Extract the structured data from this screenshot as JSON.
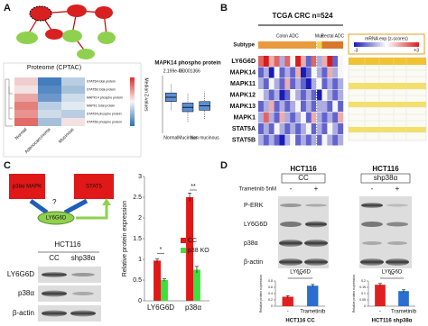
{
  "panel_labels": [
    "A",
    "B",
    "C",
    "D"
  ],
  "panel_a": {
    "heatmap": {
      "title": "Proteome (CPTAC)",
      "colorbar_title": "Median Z-values",
      "columns": [
        "Normal",
        "Adenocarcinoma",
        "Mucinous"
      ],
      "rows": [
        "STAT5A total protein",
        "STAT5B total protein",
        "MAPK14 phospho protein",
        "MAPK1 total protein",
        "STAT5A phospho protein",
        "STAT5B phospho protein"
      ],
      "zlim": [
        -1,
        1
      ],
      "values": [
        [
          0.2,
          -0.9,
          -0.3
        ],
        [
          0.1,
          -0.8,
          -0.4
        ],
        [
          0.4,
          -0.7,
          -0.2
        ],
        [
          0.6,
          -0.3,
          -0.1
        ],
        [
          0.5,
          -0.2,
          -0.3
        ],
        [
          0.7,
          -0.4,
          0.1
        ]
      ]
    }
  },
  "panel_b": {
    "title": "TCGA CRC n=524",
    "subtype_label": "Subtype",
    "subtypes": [
      {
        "label": "Colon ADC",
        "columns": 11,
        "color": "#e89a3c"
      },
      {
        "label": "Muc",
        "columns": 1,
        "color": "#f2d24a"
      },
      {
        "label": "Rectal ADC",
        "columns": 4,
        "color": "#d9772a"
      }
    ],
    "color_key": {
      "title": "mRNA exp (z-scores)",
      "min_label": "-3",
      "max_label": "+3"
    },
    "zlim": [
      -3,
      3
    ],
    "genes": [
      "LY6G6D",
      "MAPK14",
      "MAPK11",
      "MAPK12",
      "MAPK13",
      "MAPK1",
      "STAT5A",
      "STAT5B"
    ],
    "values": [
      [
        2,
        3,
        1,
        2,
        -1,
        2,
        0,
        3,
        1,
        -2,
        2,
        -1,
        1,
        3,
        -2,
        0
      ],
      [
        -2,
        -1,
        -3,
        0,
        -2,
        -1,
        -2,
        1,
        -3,
        -2,
        0,
        -1,
        -2,
        1,
        -1,
        0
      ],
      [
        -1,
        -2,
        0,
        -1,
        -2,
        1,
        -2,
        -1,
        -2,
        -3,
        -1,
        0,
        -2,
        -1,
        -2,
        -1
      ],
      [
        0,
        -1,
        -2,
        -1,
        -3,
        -2,
        0,
        -1,
        -2,
        -1,
        -2,
        -3,
        0,
        -1,
        -2,
        -1
      ],
      [
        -2,
        -1,
        1,
        -2,
        -1,
        -2,
        -1,
        0,
        -2,
        -1,
        -2,
        -1,
        -1,
        -2,
        0,
        -2
      ],
      [
        -1,
        2,
        -1,
        -2,
        1,
        -1,
        -2,
        -1,
        0,
        -2,
        1,
        -1,
        -2,
        -1,
        -2,
        1
      ],
      [
        -2,
        -1,
        -2,
        0,
        -1,
        -2,
        -1,
        -2,
        -1,
        0,
        -2,
        -1,
        -2,
        0,
        -1,
        -2
      ],
      [
        -1,
        -2,
        -1,
        -2,
        -3,
        -1,
        0,
        -2,
        -1,
        -2,
        -1,
        -2,
        0,
        -1,
        -2,
        -1
      ]
    ]
  },
  "panel_c": {
    "diagram": {
      "node_1": "p38α MAPK",
      "node_2": "STAT5",
      "question": "?",
      "target": "LY6G6D"
    },
    "blot": {
      "cell_line": "HCT116",
      "lanes": [
        "CC",
        "shp38α"
      ],
      "rows": [
        "LY6G6D",
        "p38α",
        "β-actin"
      ]
    }
  },
  "panel_d": {
    "blot_left": {
      "cell_line": "HCT116",
      "condition": "CC"
    },
    "blot_right": {
      "cell_line": "HCT116",
      "condition": "shp38α"
    },
    "treatment": "Trametinib 5nM",
    "lanes": [
      "-",
      "+"
    ],
    "rows": [
      "P-ERK",
      "LY6G6D",
      "p38α",
      "β-actin"
    ]
  },
  "chart_data": [
    {
      "type": "box",
      "title": "MAPK14 phospho protein",
      "categories": [
        "Normal",
        "Mucinous",
        "Non mucinous"
      ],
      "color": "#5b8fd6",
      "ylim": [
        -2,
        2
      ],
      "boxes": [
        {
          "min": -0.4,
          "q1": 0.2,
          "median": 0.5,
          "q3": 0.8,
          "max": 1.4
        },
        {
          "min": -1.2,
          "q1": -0.5,
          "median": -0.2,
          "q3": 0.1,
          "max": 0.8
        },
        {
          "min": -1.0,
          "q1": -0.4,
          "median": -0.1,
          "q3": 0.2,
          "max": 0.9
        }
      ],
      "annotations": [
        "2.199e-05",
        "0.0001366"
      ]
    },
    {
      "type": "bar",
      "y_label": "Relative protein expression",
      "categories": [
        "LY6G6D",
        "p38α"
      ],
      "ylim": [
        0,
        3
      ],
      "yticks": [
        0,
        0.5,
        1,
        1.5,
        2,
        2.5,
        3
      ],
      "series": [
        {
          "name": "CC",
          "color": "#e01818",
          "values": [
            0.97,
            2.5
          ],
          "errors": [
            0.04,
            0.1
          ]
        },
        {
          "name": "p38 KO",
          "color": "#3ee03e",
          "values": [
            0.5,
            0.75
          ],
          "errors": [
            0.03,
            0.08
          ]
        }
      ],
      "annotations": [
        "*",
        "**"
      ]
    },
    {
      "type": "bar",
      "title": "LY6G6D",
      "y_label": "Relative protein expression",
      "categories": [
        "-",
        "Trametinib"
      ],
      "subtitle": "HCT116 CC",
      "ylim": [
        0,
        0.8
      ],
      "yticks": [
        0,
        0.2,
        0.4,
        0.6,
        0.8
      ],
      "values": [
        0.3,
        0.65
      ],
      "errors": [
        0.03,
        0.04
      ],
      "colors": [
        "#e02020",
        "#2a6fcf"
      ],
      "annotations": [
        "**"
      ]
    },
    {
      "type": "bar",
      "title": "LY6G6D",
      "y_label": "Relative protein expression",
      "categories": [
        "-",
        "Trametinib"
      ],
      "subtitle": "HCT116 shp38α",
      "ylim": [
        0,
        0.2
      ],
      "yticks": [
        0,
        0.05,
        0.1,
        0.15,
        0.2
      ],
      "values": [
        0.17,
        0.12
      ],
      "errors": [
        0.01,
        0.01
      ],
      "colors": [
        "#e02020",
        "#2a6fcf"
      ],
      "annotations": [
        "**"
      ]
    }
  ]
}
